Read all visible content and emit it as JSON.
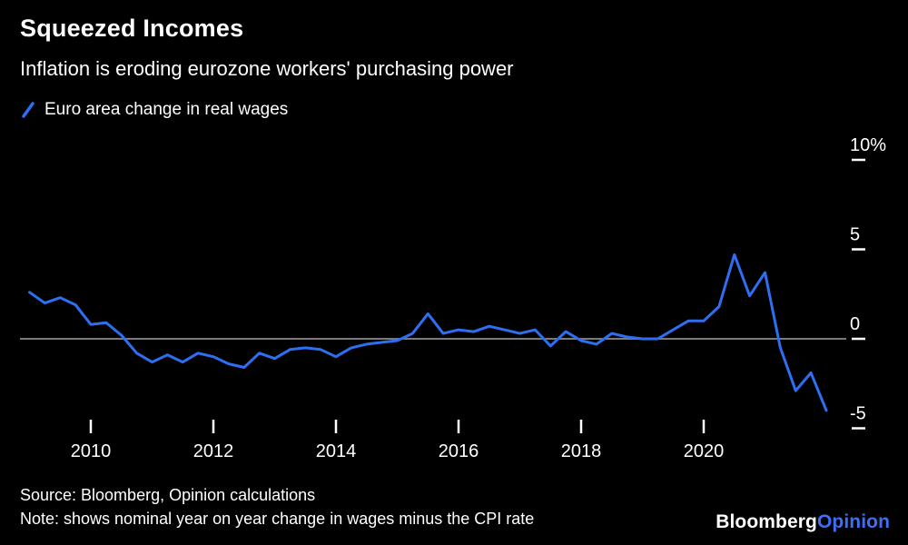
{
  "header": {
    "title": "Squeezed Incomes",
    "subtitle": "Inflation is eroding eurozone workers' purchasing power"
  },
  "footer": {
    "source": "Source: Bloomberg, Opinion calculations",
    "note": "Note: shows nominal year on year change in wages minus the CPI rate"
  },
  "logo": {
    "bloomberg": "Bloomberg",
    "opinion": "Opinion"
  },
  "colors": {
    "background": "#000000",
    "text": "#FFFFFF",
    "line_blue": "#2E6FF2",
    "zero_line": "#7A7A7A",
    "tick": "#FFFFFF",
    "opinion_blue": "#3E6FF5"
  },
  "chart_data": {
    "type": "line",
    "title": "Squeezed Incomes",
    "subtitle": "Inflation is eroding eurozone workers' purchasing power",
    "legend_position": "top-left",
    "grid": "zero-line-only",
    "x_axis": {
      "range": [
        2008.9,
        2022.3
      ],
      "ticks": [
        2010,
        2012,
        2014,
        2016,
        2018,
        2020
      ]
    },
    "y_axis": {
      "unit": "%",
      "range": [
        -5.5,
        11
      ],
      "ticks": [
        {
          "value": 10,
          "label": "10%"
        },
        {
          "value": 5,
          "label": "5"
        },
        {
          "value": 0,
          "label": "0"
        },
        {
          "value": -5,
          "label": "-5"
        }
      ]
    },
    "series": [
      {
        "name": "Euro area change in real wages",
        "color": "#2E6FF2",
        "x": [
          2009.0,
          2009.25,
          2009.5,
          2009.75,
          2010.0,
          2010.25,
          2010.5,
          2010.75,
          2011.0,
          2011.25,
          2011.5,
          2011.75,
          2012.0,
          2012.25,
          2012.5,
          2012.75,
          2013.0,
          2013.25,
          2013.5,
          2013.75,
          2014.0,
          2014.25,
          2014.5,
          2014.75,
          2015.0,
          2015.25,
          2015.5,
          2015.75,
          2016.0,
          2016.25,
          2016.5,
          2016.75,
          2017.0,
          2017.25,
          2017.5,
          2017.75,
          2018.0,
          2018.25,
          2018.5,
          2018.75,
          2019.0,
          2019.25,
          2019.5,
          2019.75,
          2020.0,
          2020.25,
          2020.5,
          2020.75,
          2021.0,
          2021.25,
          2021.5,
          2021.75,
          2022.0
        ],
        "values": [
          2.6,
          2.0,
          2.3,
          1.9,
          0.8,
          0.9,
          0.2,
          -0.8,
          -1.3,
          -0.9,
          -1.3,
          -0.8,
          -1.0,
          -1.4,
          -1.6,
          -0.8,
          -1.1,
          -0.6,
          -0.5,
          -0.6,
          -1.0,
          -0.5,
          -0.3,
          -0.2,
          -0.1,
          0.3,
          1.4,
          0.3,
          0.5,
          0.4,
          0.7,
          0.5,
          0.3,
          0.5,
          -0.4,
          0.4,
          -0.1,
          -0.3,
          0.3,
          0.1,
          0.0,
          0.0,
          0.5,
          1.0,
          1.0,
          1.8,
          4.7,
          2.4,
          3.7,
          -0.5,
          -2.9,
          -1.9,
          -4.0
        ]
      }
    ]
  }
}
